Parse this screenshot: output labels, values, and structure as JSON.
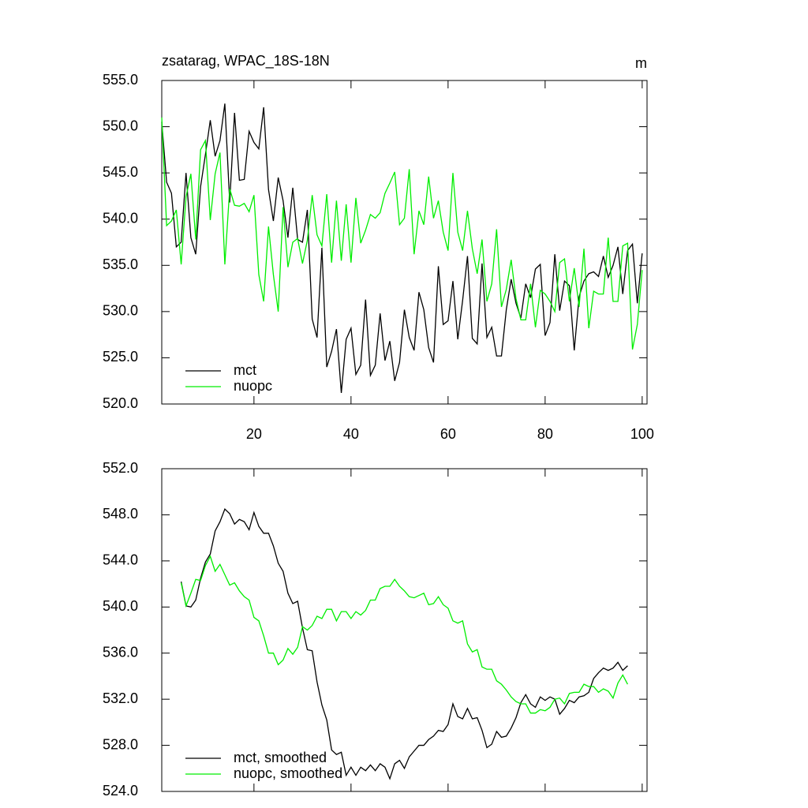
{
  "chart_data": [
    {
      "type": "line",
      "title": "zsatarag, WPAC_18S-18N",
      "units": "m",
      "x": [
        1,
        2,
        3,
        4,
        5,
        6,
        7,
        8,
        9,
        10,
        11,
        12,
        13,
        14,
        15,
        16,
        17,
        18,
        19,
        20,
        21,
        22,
        23,
        24,
        25,
        26,
        27,
        28,
        29,
        30,
        31,
        32,
        33,
        34,
        35,
        36,
        37,
        38,
        39,
        40,
        41,
        42,
        43,
        44,
        45,
        46,
        47,
        48,
        49,
        50,
        51,
        52,
        53,
        54,
        55,
        56,
        57,
        58,
        59,
        60,
        61,
        62,
        63,
        64,
        65,
        66,
        67,
        68,
        69,
        70,
        71,
        72,
        73,
        74,
        75,
        76,
        77,
        78,
        79,
        80,
        81,
        82,
        83,
        84,
        85,
        86,
        87,
        88,
        89,
        90,
        91,
        92,
        93,
        94,
        95,
        96,
        97,
        98,
        99,
        100
      ],
      "series": [
        {
          "name": "mct",
          "color": "#000000",
          "values": [
            550.5,
            544,
            542.8,
            537,
            537.5,
            545,
            538,
            536.2,
            543.5,
            547,
            550.7,
            546.8,
            548.5,
            552.5,
            541.8,
            551.5,
            544.2,
            544.3,
            549.5,
            548.3,
            547.6,
            552.1,
            543.2,
            539.8,
            544.5,
            542,
            538,
            543.4,
            537.8,
            537.5,
            541,
            529.2,
            527.2,
            536.9,
            524,
            525.7,
            528.1,
            521.2,
            527,
            528.2,
            523.2,
            524.2,
            531.3,
            523.1,
            524.2,
            529.8,
            524.7,
            526.8,
            522.5,
            524.5,
            530.2,
            527.2,
            525.8,
            532.1,
            530.2,
            526.1,
            524.5,
            534.9,
            528.6,
            529,
            533.3,
            527,
            531.2,
            536,
            527.1,
            526.5,
            535.2,
            527.2,
            528.3,
            525.2,
            525.2,
            530.2,
            533.5,
            530.9,
            529.3,
            533,
            531.5,
            534.6,
            535.1,
            527.4,
            528.8,
            536.2,
            530.1,
            533.3,
            532.8,
            525.8,
            531.6,
            533.3,
            534.1,
            534.3,
            533.8,
            536,
            533.7,
            535,
            537,
            531.9,
            536.6,
            537.3,
            530.9,
            536.3
          ]
        },
        {
          "name": "nuopc",
          "color": "#00ee00",
          "values": [
            551,
            539.3,
            539.8,
            541,
            535.1,
            542.4,
            544.9,
            537.8,
            547.5,
            548.5,
            539.9,
            544.9,
            547.2,
            535.1,
            543.3,
            541.5,
            541.4,
            541.7,
            540.8,
            542.6,
            534,
            531.1,
            539.2,
            534,
            530,
            541.3,
            534.8,
            537.5,
            537.9,
            535.2,
            537.7,
            542.6,
            538.3,
            537.1,
            542.7,
            535.3,
            542,
            535.5,
            541.6,
            535.3,
            542.3,
            537.4,
            538.8,
            540.5,
            540.1,
            540.7,
            542.8,
            543.9,
            545.1,
            539.4,
            540.1,
            545.4,
            536.2,
            540.9,
            539.4,
            544.6,
            540.1,
            542,
            538.6,
            536.6,
            545,
            538.6,
            536.6,
            540.9,
            536.8,
            534.1,
            537.8,
            531.1,
            533,
            538.9,
            530.5,
            532.4,
            535.6,
            531.4,
            529.1,
            529.1,
            533,
            528.3,
            532.3,
            531.9,
            531.1,
            530,
            535.3,
            535.7,
            531.1,
            534.7,
            530.5,
            536.8,
            528.2,
            532.2,
            531.9,
            531.9,
            538,
            531.1,
            531.1,
            537.1,
            537.4,
            525.9,
            528.6,
            534.5
          ]
        }
      ],
      "xlim": [
        1,
        101
      ],
      "xticks": [
        20,
        40,
        60,
        80,
        100
      ],
      "ylim": [
        520,
        555
      ],
      "yticks": [
        {
          "value": 520,
          "label": "520.0"
        },
        {
          "value": 525,
          "label": "525.0"
        },
        {
          "value": 530,
          "label": "530.0"
        },
        {
          "value": 535,
          "label": "535.0"
        },
        {
          "value": 540,
          "label": "540.0"
        },
        {
          "value": 545,
          "label": "545.0"
        },
        {
          "value": 550,
          "label": "550.0"
        },
        {
          "value": 555,
          "label": "555.0"
        }
      ],
      "legend": "lower left"
    },
    {
      "type": "line",
      "x": [
        5,
        6,
        7,
        8,
        9,
        10,
        11,
        12,
        13,
        14,
        15,
        16,
        17,
        18,
        19,
        20,
        21,
        22,
        23,
        24,
        25,
        26,
        27,
        28,
        29,
        30,
        31,
        32,
        33,
        34,
        35,
        36,
        37,
        38,
        39,
        40,
        41,
        42,
        43,
        44,
        45,
        46,
        47,
        48,
        49,
        50,
        51,
        52,
        53,
        54,
        55,
        56,
        57,
        58,
        59,
        60,
        61,
        62,
        63,
        64,
        65,
        66,
        67,
        68,
        69,
        70,
        71,
        72,
        73,
        74,
        75,
        76,
        77,
        78,
        79,
        80,
        81,
        82,
        83,
        84,
        85,
        86,
        87,
        88,
        89,
        90,
        91,
        92,
        93,
        94,
        95,
        96,
        97
      ],
      "series": [
        {
          "name": "mct, smoothed",
          "color": "#000000",
          "values": [
            542.2,
            540.1,
            540,
            540.6,
            542.5,
            543.9,
            544.6,
            546.6,
            547.4,
            548.5,
            548.1,
            547.2,
            547.6,
            547.4,
            546.7,
            548.2,
            547,
            546.4,
            546.4,
            545.3,
            543.8,
            543.1,
            541.2,
            540.3,
            540.5,
            538.2,
            536.3,
            536.2,
            533.5,
            531.5,
            530.2,
            527.6,
            527.2,
            527.4,
            525.4,
            526.1,
            525.4,
            526.1,
            525.8,
            526.3,
            525.8,
            526.4,
            526.1,
            525.1,
            526.4,
            526.7,
            526,
            527,
            527.5,
            528,
            528,
            528.5,
            528.8,
            529.3,
            529.2,
            529.8,
            531.6,
            530.5,
            530.3,
            531.2,
            530.3,
            530.4,
            529.3,
            527.8,
            528.1,
            529.2,
            528.7,
            528.8,
            529.5,
            530.4,
            531.7,
            532.4,
            531.6,
            531.3,
            532.2,
            531.9,
            532.2,
            532,
            530.7,
            531.2,
            531.9,
            531.7,
            532.2,
            532.3,
            532.6,
            533.8,
            534.3,
            534.7,
            534.5,
            534.7,
            535.2,
            534.5,
            534.9
          ]
        },
        {
          "name": "nuopc, smoothed",
          "color": "#00ee00",
          "values": [
            542.1,
            540.1,
            541.2,
            542.4,
            542.3,
            543.6,
            544.4,
            543.1,
            543.7,
            542.8,
            541.9,
            542.1,
            541.4,
            540.9,
            540.6,
            539.1,
            538.8,
            537.5,
            536,
            536,
            535,
            535.4,
            536.4,
            535.9,
            536.5,
            538.3,
            538,
            538.4,
            539.2,
            539,
            539.8,
            539.8,
            538.8,
            539.6,
            539.6,
            539,
            539.6,
            539.3,
            539.7,
            540.6,
            540.6,
            541.6,
            541.8,
            541.8,
            542.4,
            541.8,
            541.4,
            540.9,
            540.8,
            541,
            541.2,
            540.2,
            540.3,
            540.9,
            540.2,
            539.9,
            538.8,
            538.6,
            538.8,
            536.8,
            536.1,
            536.3,
            534.8,
            534.6,
            534.6,
            533.6,
            533.3,
            532.8,
            532.2,
            531.8,
            531.6,
            531.6,
            530.8,
            530.8,
            531.1,
            531,
            531.3,
            532,
            532.1,
            531.6,
            532.5,
            532.6,
            532.6,
            533.3,
            533.1,
            533.1,
            532.6,
            532.9,
            532.7,
            532.1,
            533.4,
            534.1,
            533.3
          ]
        }
      ],
      "xlim": [
        1,
        101
      ],
      "xticks": [
        20,
        40,
        60,
        80,
        100
      ],
      "ylim": [
        524,
        552
      ],
      "yticks": [
        {
          "value": 524,
          "label": "524.0"
        },
        {
          "value": 528,
          "label": "528.0"
        },
        {
          "value": 532,
          "label": "532.0"
        },
        {
          "value": 536,
          "label": "536.0"
        },
        {
          "value": 540,
          "label": "540.0"
        },
        {
          "value": 544,
          "label": "544.0"
        },
        {
          "value": 548,
          "label": "548.0"
        },
        {
          "value": 552,
          "label": "552.0"
        }
      ],
      "legend": "lower left"
    }
  ]
}
